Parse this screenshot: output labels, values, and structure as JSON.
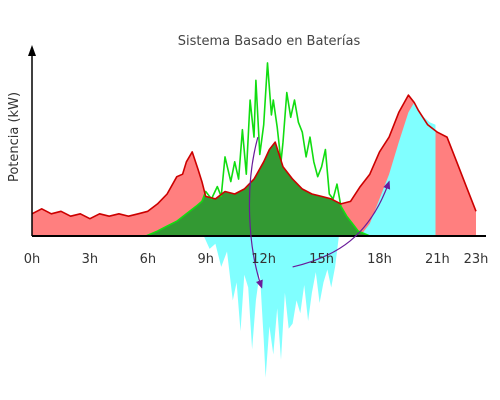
{
  "chart_data": {
    "type": "area",
    "title": "Sistema Basado en Baterías",
    "ylabel": "Potencia (kW)",
    "xlabel": "",
    "x_ticks": [
      {
        "h": 0,
        "label": "0h"
      },
      {
        "h": 3,
        "label": "3h"
      },
      {
        "h": 6,
        "label": "6h"
      },
      {
        "h": 9,
        "label": "9h"
      },
      {
        "h": 12,
        "label": "12h"
      },
      {
        "h": 15,
        "label": "15h"
      },
      {
        "h": 18,
        "label": "18h"
      },
      {
        "h": 21,
        "label": "21h"
      },
      {
        "h": 23,
        "label": "23h"
      }
    ],
    "xlim": [
      0,
      23
    ],
    "ylim": [
      -52,
      72
    ],
    "grid": false,
    "legend": "none",
    "colors": {
      "demand_fill": "#ff7f7f",
      "demand_line": "#cc0000",
      "self_consumption_fill": "#339933",
      "pv_line": "#11dd11",
      "battery_fill": "#80ffff",
      "arrow": "#6a1b9a"
    },
    "series": [
      {
        "role": "demand",
        "x": [
          0,
          0.5,
          1,
          1.5,
          2,
          2.5,
          3,
          3.5,
          4,
          4.5,
          5,
          5.5,
          6,
          6.5,
          7,
          7.5,
          7.8,
          8,
          8.3,
          8.6,
          8.8,
          9,
          9.5,
          10,
          10.5,
          11,
          11.5,
          12,
          12.3,
          12.6,
          13,
          13.5,
          14,
          14.5,
          15,
          15.5,
          16,
          16.5,
          17,
          17.5,
          18,
          18.5,
          19,
          19.5,
          19.8,
          20,
          20.5,
          21,
          21.5,
          22,
          22.5,
          23
        ],
        "y": [
          9,
          11,
          9,
          10,
          8,
          9,
          7,
          9,
          8,
          9,
          8,
          9,
          10,
          13,
          17,
          24,
          25,
          30,
          34,
          27,
          22,
          16,
          15,
          18,
          17,
          19,
          23,
          30,
          35,
          38,
          28,
          23,
          19,
          17,
          16,
          15,
          13,
          14,
          20,
          25,
          34,
          40,
          50,
          57,
          54,
          51,
          45,
          42,
          40,
          30,
          20,
          10
        ]
      },
      {
        "role": "pv",
        "x": [
          5.9,
          6.5,
          7,
          7.5,
          8,
          8.5,
          8.8,
          9,
          9.3,
          9.6,
          9.8,
          10,
          10.3,
          10.5,
          10.7,
          10.9,
          11.1,
          11.3,
          11.5,
          11.6,
          11.8,
          12,
          12.2,
          12.4,
          12.5,
          12.7,
          12.9,
          13,
          13.2,
          13.4,
          13.6,
          13.8,
          14,
          14.2,
          14.4,
          14.6,
          14.8,
          15,
          15.2,
          15.4,
          15.6,
          15.8,
          16,
          16.3,
          16.6,
          16.9,
          17.2,
          17.5
        ],
        "y": [
          0,
          2,
          4,
          6,
          9,
          12,
          14,
          18,
          15,
          20,
          16,
          32,
          22,
          30,
          23,
          43,
          25,
          55,
          40,
          63,
          33,
          45,
          70,
          49,
          55,
          44,
          30,
          38,
          58,
          48,
          55,
          46,
          42,
          32,
          40,
          30,
          24,
          28,
          35,
          17,
          15,
          21,
          12,
          8,
          5,
          2,
          1,
          0
        ]
      },
      {
        "role": "battery_charge",
        "x": [
          8.9,
          9.2,
          9.5,
          9.8,
          10.1,
          10.4,
          10.6,
          10.8,
          11,
          11.2,
          11.4,
          11.6,
          11.8,
          12,
          12.1,
          12.3,
          12.5,
          12.7,
          12.9,
          13.1,
          13.3,
          13.5,
          13.7,
          13.9,
          14.1,
          14.3,
          14.5,
          14.7,
          14.9,
          15.1,
          15.3,
          15.5,
          15.7,
          15.9
        ],
        "y": [
          0,
          -5,
          -3,
          -12,
          -6,
          -25,
          -18,
          -37,
          -15,
          -20,
          -44,
          -25,
          -14,
          -40,
          -55,
          -35,
          -46,
          -28,
          -48,
          -22,
          -36,
          -34,
          -25,
          -30,
          -19,
          -33,
          -22,
          -14,
          -26,
          -18,
          -13,
          -20,
          -12,
          0
        ]
      },
      {
        "role": "battery_discharge",
        "x": [
          17,
          17.5,
          18,
          18.5,
          19,
          19.5,
          19.8,
          20,
          20.3,
          20.6,
          20.9,
          20.9,
          17
        ],
        "y": [
          0,
          5,
          15,
          25,
          38,
          50,
          54,
          51,
          48,
          46,
          45,
          0,
          0
        ]
      }
    ]
  }
}
